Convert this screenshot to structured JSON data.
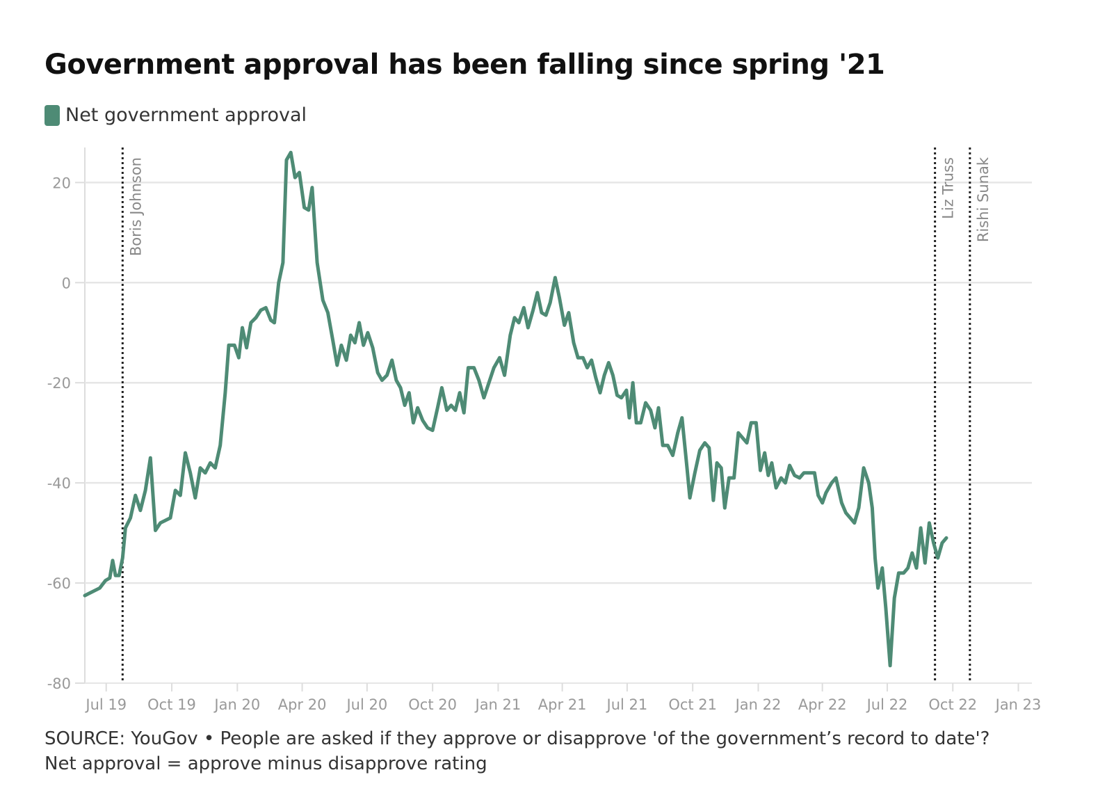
{
  "title": "Government approval has been falling since spring '21",
  "source_line_1": "SOURCE: YouGov • People are asked if they approve or disapprove 'of the government’s record to date'?",
  "source_line_2": "Net approval = approve minus disapprove rating",
  "colors": {
    "line": "#4e8b75",
    "grid": "#e6e6e6",
    "axis_text": "#999999",
    "marker": "#222222"
  },
  "chart_data": {
    "type": "line",
    "legend": "top-left",
    "grid": true,
    "ylim": [
      -80,
      27
    ],
    "yticks": [
      20,
      0,
      -20,
      -40,
      -60,
      -80
    ],
    "xlim": [
      "2019-06-01",
      "2023-01-20"
    ],
    "xticks": [
      {
        "date": "2019-07-01",
        "label": "Jul 19"
      },
      {
        "date": "2019-10-01",
        "label": "Oct 19"
      },
      {
        "date": "2020-01-01",
        "label": "Jan 20"
      },
      {
        "date": "2020-04-01",
        "label": "Apr 20"
      },
      {
        "date": "2020-07-01",
        "label": "Jul 20"
      },
      {
        "date": "2020-10-01",
        "label": "Oct 20"
      },
      {
        "date": "2021-01-01",
        "label": "Jan 21"
      },
      {
        "date": "2021-04-01",
        "label": "Apr 21"
      },
      {
        "date": "2021-07-01",
        "label": "Jul 21"
      },
      {
        "date": "2021-10-01",
        "label": "Oct 21"
      },
      {
        "date": "2022-01-01",
        "label": "Jan 22"
      },
      {
        "date": "2022-04-01",
        "label": "Apr 22"
      },
      {
        "date": "2022-07-01",
        "label": "Jul 22"
      },
      {
        "date": "2022-10-01",
        "label": "Oct 22"
      },
      {
        "date": "2023-01-01",
        "label": "Jan 23"
      }
    ],
    "annotations": [
      {
        "date": "2019-07-24",
        "label": "Boris Johnson"
      },
      {
        "date": "2022-09-06",
        "label": "Liz Truss"
      },
      {
        "date": "2022-10-25",
        "label": "Rishi Sunak"
      }
    ],
    "series": [
      {
        "name": "Net government approval",
        "points": [
          [
            "2019-06-01",
            -62.5
          ],
          [
            "2019-06-22",
            -61.0
          ],
          [
            "2019-06-30",
            -59.5
          ],
          [
            "2019-07-06",
            -59.0
          ],
          [
            "2019-07-10",
            -55.5
          ],
          [
            "2019-07-14",
            -58.5
          ],
          [
            "2019-07-19",
            -58.5
          ],
          [
            "2019-07-24",
            -55.0
          ],
          [
            "2019-07-28",
            -49.0
          ],
          [
            "2019-08-04",
            -47.0
          ],
          [
            "2019-08-11",
            -42.5
          ],
          [
            "2019-08-18",
            -45.5
          ],
          [
            "2019-08-25",
            -41.5
          ],
          [
            "2019-09-01",
            -35.0
          ],
          [
            "2019-09-08",
            -49.5
          ],
          [
            "2019-09-15",
            -48.0
          ],
          [
            "2019-09-22",
            -47.5
          ],
          [
            "2019-09-29",
            -47.0
          ],
          [
            "2019-10-06",
            -41.5
          ],
          [
            "2019-10-13",
            -42.5
          ],
          [
            "2019-10-20",
            -34.0
          ],
          [
            "2019-10-27",
            -38.0
          ],
          [
            "2019-11-03",
            -43.0
          ],
          [
            "2019-11-10",
            -37.0
          ],
          [
            "2019-11-17",
            -38.0
          ],
          [
            "2019-11-24",
            -36.0
          ],
          [
            "2019-12-01",
            -37.0
          ],
          [
            "2019-12-08",
            -32.5
          ],
          [
            "2019-12-15",
            -22.0
          ],
          [
            "2019-12-20",
            -12.5
          ],
          [
            "2019-12-28",
            -12.5
          ],
          [
            "2020-01-03",
            -15.0
          ],
          [
            "2020-01-08",
            -9.0
          ],
          [
            "2020-01-14",
            -13.0
          ],
          [
            "2020-01-20",
            -8.0
          ],
          [
            "2020-01-27",
            -7.0
          ],
          [
            "2020-02-03",
            -5.5
          ],
          [
            "2020-02-10",
            -5.0
          ],
          [
            "2020-02-17",
            -7.5
          ],
          [
            "2020-02-22",
            -8.0
          ],
          [
            "2020-02-28",
            0.0
          ],
          [
            "2020-03-05",
            4.0
          ],
          [
            "2020-03-10",
            24.5
          ],
          [
            "2020-03-16",
            26.0
          ],
          [
            "2020-03-22",
            21.0
          ],
          [
            "2020-03-28",
            22.0
          ],
          [
            "2020-04-04",
            15.0
          ],
          [
            "2020-04-10",
            14.5
          ],
          [
            "2020-04-15",
            19.0
          ],
          [
            "2020-04-22",
            4.0
          ],
          [
            "2020-04-30",
            -3.5
          ],
          [
            "2020-05-07",
            -6.0
          ],
          [
            "2020-05-14",
            -11.5
          ],
          [
            "2020-05-20",
            -16.5
          ],
          [
            "2020-05-26",
            -12.5
          ],
          [
            "2020-06-02",
            -15.5
          ],
          [
            "2020-06-08",
            -10.5
          ],
          [
            "2020-06-14",
            -12.0
          ],
          [
            "2020-06-20",
            -8.0
          ],
          [
            "2020-06-26",
            -12.5
          ],
          [
            "2020-07-02",
            -10.0
          ],
          [
            "2020-07-09",
            -13.0
          ],
          [
            "2020-07-16",
            -18.0
          ],
          [
            "2020-07-22",
            -19.5
          ],
          [
            "2020-07-29",
            -18.5
          ],
          [
            "2020-08-05",
            -15.5
          ],
          [
            "2020-08-11",
            -19.5
          ],
          [
            "2020-08-17",
            -21.0
          ],
          [
            "2020-08-23",
            -24.5
          ],
          [
            "2020-08-29",
            -22.0
          ],
          [
            "2020-09-04",
            -28.0
          ],
          [
            "2020-09-10",
            -25.0
          ],
          [
            "2020-09-17",
            -27.5
          ],
          [
            "2020-09-24",
            -29.0
          ],
          [
            "2020-10-01",
            -29.5
          ],
          [
            "2020-10-08",
            -25.0
          ],
          [
            "2020-10-14",
            -21.0
          ],
          [
            "2020-10-21",
            -25.5
          ],
          [
            "2020-10-27",
            -24.5
          ],
          [
            "2020-11-02",
            -25.5
          ],
          [
            "2020-11-08",
            -22.0
          ],
          [
            "2020-11-14",
            -26.0
          ],
          [
            "2020-11-20",
            -17.0
          ],
          [
            "2020-11-28",
            -17.0
          ],
          [
            "2020-12-05",
            -19.5
          ],
          [
            "2020-12-12",
            -23.0
          ],
          [
            "2020-12-19",
            -20.0
          ],
          [
            "2020-12-26",
            -17.0
          ],
          [
            "2021-01-03",
            -15.0
          ],
          [
            "2021-01-10",
            -18.5
          ],
          [
            "2021-01-18",
            -10.5
          ],
          [
            "2021-01-24",
            -7.0
          ],
          [
            "2021-01-30",
            -8.0
          ],
          [
            "2021-02-06",
            -5.0
          ],
          [
            "2021-02-12",
            -9.0
          ],
          [
            "2021-02-19",
            -5.5
          ],
          [
            "2021-02-25",
            -2.0
          ],
          [
            "2021-03-03",
            -6.0
          ],
          [
            "2021-03-09",
            -6.5
          ],
          [
            "2021-03-15",
            -4.0
          ],
          [
            "2021-03-22",
            1.0
          ],
          [
            "2021-03-28",
            -3.0
          ],
          [
            "2021-04-04",
            -8.5
          ],
          [
            "2021-04-10",
            -6.0
          ],
          [
            "2021-04-17",
            -12.0
          ],
          [
            "2021-04-23",
            -15.0
          ],
          [
            "2021-04-30",
            -15.0
          ],
          [
            "2021-05-06",
            -17.0
          ],
          [
            "2021-05-12",
            -15.5
          ],
          [
            "2021-05-18",
            -19.0
          ],
          [
            "2021-05-24",
            -22.0
          ],
          [
            "2021-05-30",
            -18.5
          ],
          [
            "2021-06-05",
            -16.0
          ],
          [
            "2021-06-11",
            -18.5
          ],
          [
            "2021-06-17",
            -22.5
          ],
          [
            "2021-06-23",
            -23.0
          ],
          [
            "2021-06-30",
            -21.5
          ],
          [
            "2021-07-04",
            -27.0
          ],
          [
            "2021-07-09",
            -20.0
          ],
          [
            "2021-07-14",
            -28.0
          ],
          [
            "2021-07-20",
            -28.0
          ],
          [
            "2021-07-27",
            -24.0
          ],
          [
            "2021-08-03",
            -25.5
          ],
          [
            "2021-08-09",
            -29.0
          ],
          [
            "2021-08-14",
            -25.0
          ],
          [
            "2021-08-20",
            -32.5
          ],
          [
            "2021-08-27",
            -32.5
          ],
          [
            "2021-09-03",
            -34.5
          ],
          [
            "2021-09-10",
            -30.0
          ],
          [
            "2021-09-16",
            -27.0
          ],
          [
            "2021-09-23",
            -37.0
          ],
          [
            "2021-09-27",
            -43.0
          ],
          [
            "2021-10-04",
            -38.0
          ],
          [
            "2021-10-11",
            -33.5
          ],
          [
            "2021-10-18",
            -32.0
          ],
          [
            "2021-10-24",
            -33.0
          ],
          [
            "2021-10-30",
            -43.5
          ],
          [
            "2021-11-04",
            -36.0
          ],
          [
            "2021-11-10",
            -37.0
          ],
          [
            "2021-11-15",
            -45.0
          ],
          [
            "2021-11-21",
            -39.0
          ],
          [
            "2021-11-28",
            -39.0
          ],
          [
            "2021-12-04",
            -30.0
          ],
          [
            "2021-12-10",
            -31.0
          ],
          [
            "2021-12-16",
            -32.0
          ],
          [
            "2021-12-22",
            -28.0
          ],
          [
            "2021-12-29",
            -28.0
          ],
          [
            "2022-01-04",
            -37.5
          ],
          [
            "2022-01-10",
            -34.0
          ],
          [
            "2022-01-15",
            -38.5
          ],
          [
            "2022-01-20",
            -36.0
          ],
          [
            "2022-01-26",
            -41.0
          ],
          [
            "2022-02-02",
            -39.0
          ],
          [
            "2022-02-08",
            -40.0
          ],
          [
            "2022-02-14",
            -36.5
          ],
          [
            "2022-02-21",
            -38.5
          ],
          [
            "2022-02-28",
            -39.0
          ],
          [
            "2022-03-06",
            -38.0
          ],
          [
            "2022-03-14",
            -38.0
          ],
          [
            "2022-03-21",
            -38.0
          ],
          [
            "2022-03-26",
            -42.5
          ],
          [
            "2022-04-01",
            -44.0
          ],
          [
            "2022-04-06",
            -42.0
          ],
          [
            "2022-04-14",
            -40.0
          ],
          [
            "2022-04-20",
            -39.0
          ],
          [
            "2022-04-28",
            -44.0
          ],
          [
            "2022-05-04",
            -46.0
          ],
          [
            "2022-05-10",
            -47.0
          ],
          [
            "2022-05-16",
            -48.0
          ],
          [
            "2022-05-22",
            -45.0
          ],
          [
            "2022-05-29",
            -37.0
          ],
          [
            "2022-06-05",
            -40.0
          ],
          [
            "2022-06-10",
            -45.0
          ],
          [
            "2022-06-14",
            -55.0
          ],
          [
            "2022-06-18",
            -61.0
          ],
          [
            "2022-06-24",
            -57.0
          ],
          [
            "2022-06-29",
            -65.0
          ],
          [
            "2022-07-05",
            -76.5
          ],
          [
            "2022-07-11",
            -63.0
          ],
          [
            "2022-07-17",
            -58.0
          ],
          [
            "2022-07-24",
            -58.0
          ],
          [
            "2022-07-30",
            -57.0
          ],
          [
            "2022-08-05",
            -54.0
          ],
          [
            "2022-08-11",
            -57.0
          ],
          [
            "2022-08-17",
            -49.0
          ],
          [
            "2022-08-23",
            -56.0
          ],
          [
            "2022-08-29",
            -48.0
          ],
          [
            "2022-09-04",
            -52.0
          ],
          [
            "2022-09-10",
            -55.0
          ],
          [
            "2022-09-16",
            -52.0
          ],
          [
            "2022-09-22",
            -51.0
          ]
        ]
      }
    ]
  }
}
